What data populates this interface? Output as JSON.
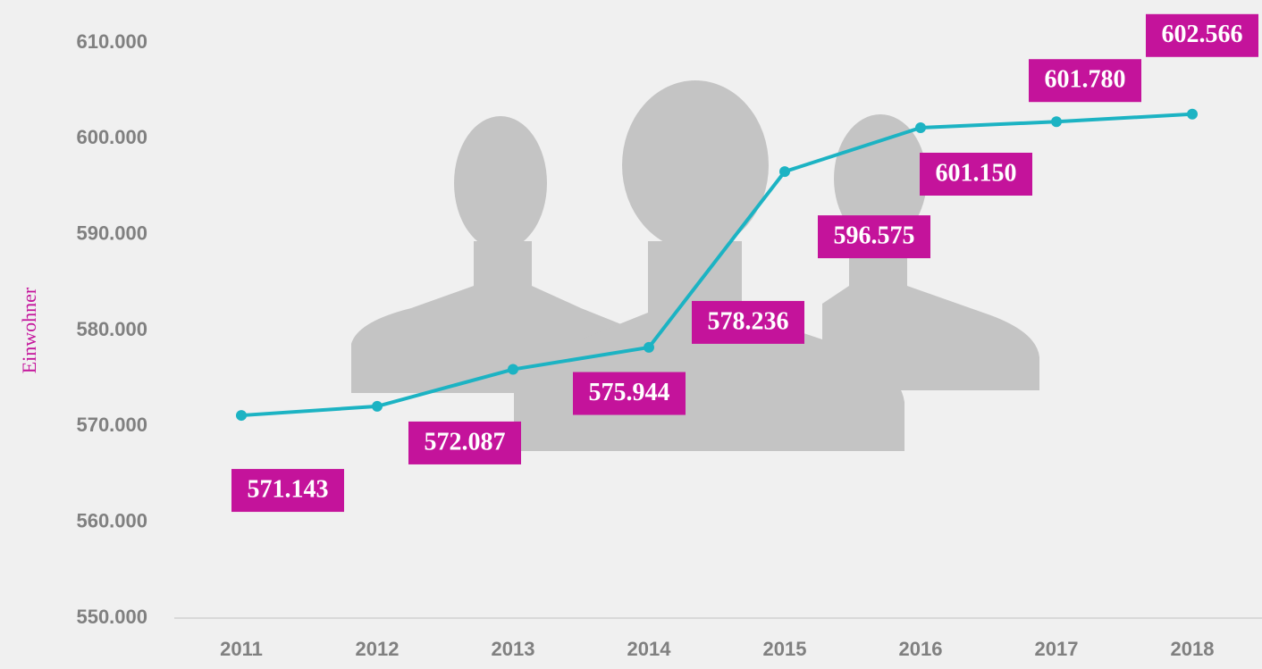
{
  "chart_data": {
    "type": "line",
    "y_label": "Einwohner",
    "categories": [
      "2011",
      "2012",
      "2013",
      "2014",
      "2015",
      "2016",
      "2017",
      "2018"
    ],
    "values": [
      571143,
      572087,
      575944,
      578236,
      596575,
      601150,
      601780,
      602566
    ],
    "value_labels": [
      "571.143",
      "572.087",
      "575.944",
      "578.236",
      "596.575",
      "601.150",
      "601.780",
      "602.566"
    ],
    "color": "#1cb3c3",
    "label_color": "#c4139b",
    "ylim": [
      550000,
      610000
    ],
    "yticks": [
      {
        "value": 550000,
        "label": "550.000"
      },
      {
        "value": 560000,
        "label": "560.000"
      },
      {
        "value": 570000,
        "label": "570.000"
      },
      {
        "value": 580000,
        "label": "580.000"
      },
      {
        "value": 590000,
        "label": "590.000"
      },
      {
        "value": 600000,
        "label": "600.000"
      },
      {
        "value": 610000,
        "label": "610.000"
      }
    ]
  }
}
